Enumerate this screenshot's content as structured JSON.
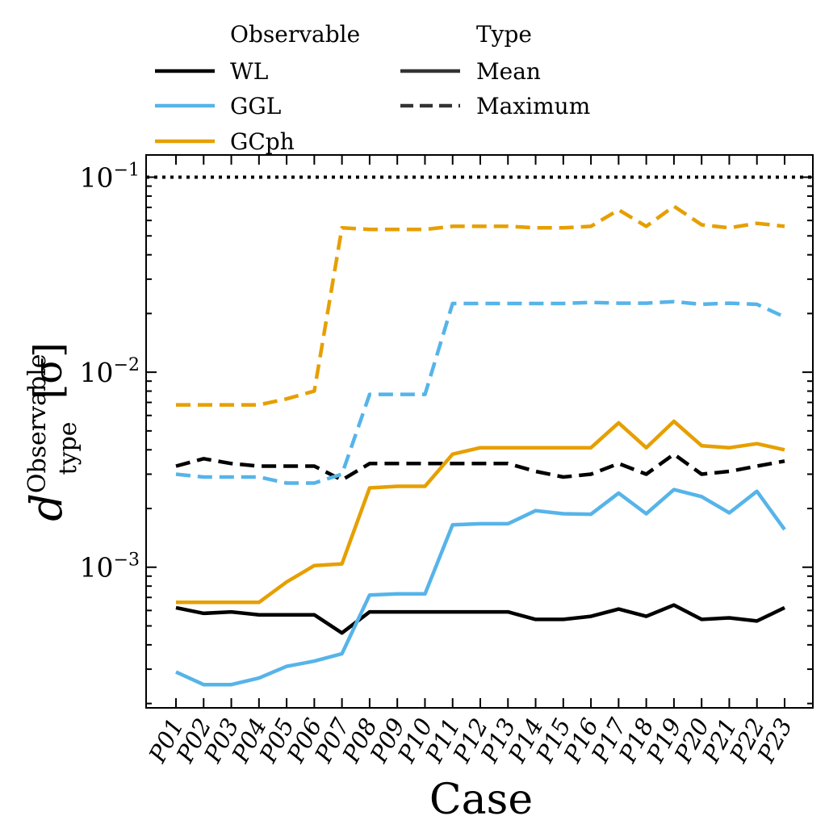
{
  "chart_data": {
    "type": "line",
    "xlabel": "Case",
    "ylabel_base": "d",
    "ylabel_sup": "Observable",
    "ylabel_sub": "type",
    "ylabel_unit": "[σ]",
    "yscale": "log",
    "ylim": [
      0.00019,
      0.13
    ],
    "yticks": [
      {
        "value": 0.001,
        "base": "10",
        "exp": "−3"
      },
      {
        "value": 0.01,
        "base": "10",
        "exp": "−2"
      },
      {
        "value": 0.1,
        "base": "10",
        "exp": "−1"
      }
    ],
    "categories": [
      "P01",
      "P02",
      "P03",
      "P04",
      "P05",
      "P06",
      "P07",
      "P08",
      "P09",
      "P10",
      "P11",
      "P12",
      "P13",
      "P14",
      "P15",
      "P16",
      "P17",
      "P18",
      "P19",
      "P20",
      "P21",
      "P22",
      "P23"
    ],
    "threshold": {
      "value": 0.1,
      "style": "dotted",
      "color": "#000000"
    },
    "legend": {
      "observable_title": "Observable",
      "type_title": "Type",
      "observables": [
        {
          "label": "WL",
          "color": "#000000"
        },
        {
          "label": "GGL",
          "color": "#56b4e9"
        },
        {
          "label": "GCph",
          "color": "#e69f00"
        }
      ],
      "types": [
        {
          "label": "Mean",
          "style": "solid"
        },
        {
          "label": "Maximum",
          "style": "dashed"
        }
      ]
    },
    "series": [
      {
        "name": "WL",
        "type": "Mean",
        "color": "#000000",
        "style": "solid",
        "values": [
          0.00062,
          0.00058,
          0.00059,
          0.00057,
          0.00057,
          0.00057,
          0.00046,
          0.00059,
          0.00059,
          0.00059,
          0.00059,
          0.00059,
          0.00059,
          0.00054,
          0.00054,
          0.00056,
          0.00061,
          0.00056,
          0.00064,
          0.00054,
          0.00055,
          0.00053,
          0.00062
        ]
      },
      {
        "name": "WL",
        "type": "Maximum",
        "color": "#000000",
        "style": "dashed",
        "values": [
          0.0033,
          0.0036,
          0.0034,
          0.0033,
          0.0033,
          0.0033,
          0.0028,
          0.0034,
          0.0034,
          0.0034,
          0.0034,
          0.0034,
          0.0034,
          0.0031,
          0.0029,
          0.003,
          0.0034,
          0.003,
          0.0038,
          0.003,
          0.0031,
          0.0033,
          0.0035
        ]
      },
      {
        "name": "GGL",
        "type": "Mean",
        "color": "#56b4e9",
        "style": "solid",
        "values": [
          0.00029,
          0.00025,
          0.00025,
          0.00027,
          0.00031,
          0.00033,
          0.00036,
          0.00072,
          0.00073,
          0.00073,
          0.00165,
          0.00167,
          0.00167,
          0.00195,
          0.00188,
          0.00187,
          0.0024,
          0.00188,
          0.0025,
          0.0023,
          0.0019,
          0.00245,
          0.00156
        ]
      },
      {
        "name": "GGL",
        "type": "Maximum",
        "color": "#56b4e9",
        "style": "dashed",
        "values": [
          0.003,
          0.0029,
          0.0029,
          0.0029,
          0.0027,
          0.0027,
          0.003,
          0.0077,
          0.0077,
          0.0077,
          0.0225,
          0.0225,
          0.0225,
          0.0225,
          0.0225,
          0.0228,
          0.0226,
          0.0226,
          0.023,
          0.0223,
          0.0226,
          0.0223,
          0.0192
        ]
      },
      {
        "name": "GCph",
        "type": "Mean",
        "color": "#e69f00",
        "style": "solid",
        "values": [
          0.00066,
          0.00066,
          0.00066,
          0.00066,
          0.00084,
          0.00102,
          0.00104,
          0.00255,
          0.0026,
          0.0026,
          0.0038,
          0.0041,
          0.0041,
          0.0041,
          0.0041,
          0.0041,
          0.0055,
          0.0041,
          0.0056,
          0.0042,
          0.0041,
          0.0043,
          0.004
        ]
      },
      {
        "name": "GCph",
        "type": "Maximum",
        "color": "#e69f00",
        "style": "dashed",
        "values": [
          0.0068,
          0.0068,
          0.0068,
          0.0068,
          0.0073,
          0.008,
          0.055,
          0.054,
          0.054,
          0.054,
          0.056,
          0.056,
          0.056,
          0.055,
          0.055,
          0.056,
          0.068,
          0.056,
          0.071,
          0.057,
          0.055,
          0.058,
          0.056
        ]
      }
    ]
  }
}
